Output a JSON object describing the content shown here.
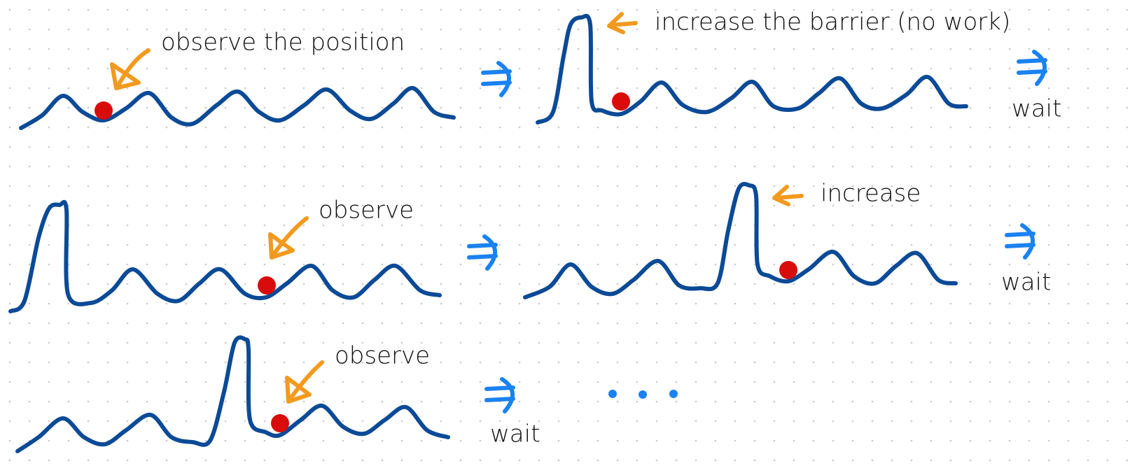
{
  "panels": [
    {
      "annotation": "observe the position"
    },
    {
      "annotation": "increase the barrier (no work)",
      "step": "wait"
    },
    {
      "annotation": "observe"
    },
    {
      "annotation": "increase",
      "step": "wait"
    },
    {
      "annotation": "observe",
      "step": "wait"
    }
  ]
}
